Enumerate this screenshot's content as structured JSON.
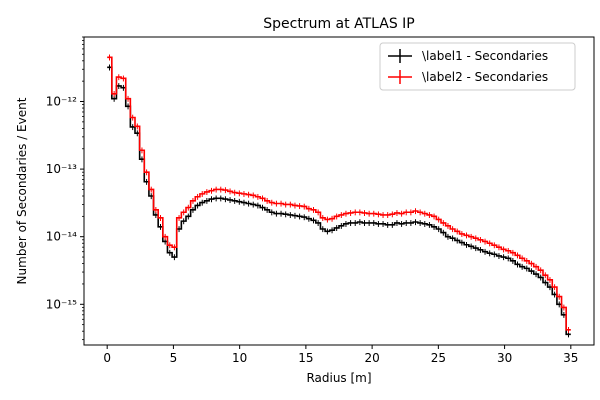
{
  "chart_data": {
    "type": "line",
    "title": "Spectrum at ATLAS IP",
    "xlabel": "Radius [m]",
    "ylabel": "Number of Secondaries / Event",
    "yscale": "log",
    "xlim": [
      -1.75,
      36.75
    ],
    "ylim": [
      2.5e-16,
      9e-12
    ],
    "x_ticks": [
      {
        "value": 0,
        "label": "0"
      },
      {
        "value": 5,
        "label": "5"
      },
      {
        "value": 10,
        "label": "10"
      },
      {
        "value": 15,
        "label": "15"
      },
      {
        "value": 20,
        "label": "20"
      },
      {
        "value": 25,
        "label": "25"
      },
      {
        "value": 30,
        "label": "30"
      },
      {
        "value": 35,
        "label": "35"
      }
    ],
    "y_ticks": [
      {
        "value": 1e-15,
        "label": "10⁻¹⁵"
      },
      {
        "value": 1e-14,
        "label": "10⁻¹⁴"
      },
      {
        "value": 1e-13,
        "label": "10⁻¹³"
      },
      {
        "value": 1e-12,
        "label": "10⁻¹²"
      }
    ],
    "grid": false,
    "legend_position": "top-right",
    "bin_edges": [
      0,
      0.35,
      0.7,
      1.05,
      1.4,
      1.75,
      2.1,
      2.45,
      2.8,
      3.15,
      3.5,
      3.85,
      4.2,
      4.55,
      4.9,
      5.25,
      5.6,
      5.95,
      6.3,
      6.65,
      7.0,
      7.35,
      7.7,
      8.05,
      8.4,
      8.75,
      9.1,
      9.45,
      9.8,
      10.15,
      10.5,
      10.85,
      11.2,
      11.55,
      11.9,
      12.25,
      12.6,
      12.95,
      13.3,
      13.65,
      14.0,
      14.35,
      14.7,
      15.05,
      15.4,
      15.75,
      16.1,
      16.45,
      16.8,
      17.15,
      17.5,
      17.85,
      18.2,
      18.55,
      18.9,
      19.25,
      19.6,
      19.95,
      20.3,
      20.65,
      21.0,
      21.35,
      21.7,
      22.05,
      22.4,
      22.75,
      23.1,
      23.45,
      23.8,
      24.15,
      24.5,
      24.85,
      25.2,
      25.55,
      25.9,
      26.25,
      26.6,
      26.95,
      27.3,
      27.65,
      28.0,
      28.35,
      28.7,
      29.05,
      29.4,
      29.75,
      30.1,
      30.45,
      30.8,
      31.15,
      31.5,
      31.85,
      32.2,
      32.55,
      32.9,
      33.25,
      33.6,
      33.95,
      34.3,
      34.65,
      35.0
    ],
    "series": [
      {
        "name": "\\label1 - Secondaries",
        "color": "#000000",
        "values": [
          3.2e-12,
          1.1e-12,
          1.7e-12,
          1.6e-12,
          8.5e-13,
          4.2e-13,
          3.4e-13,
          1.4e-13,
          6.5e-14,
          4e-14,
          2.1e-14,
          1.4e-14,
          8.5e-15,
          5.8e-15,
          5e-15,
          1.3e-14,
          1.7e-14,
          2e-14,
          2.5e-14,
          2.9e-14,
          3.2e-14,
          3.4e-14,
          3.6e-14,
          3.7e-14,
          3.7e-14,
          3.6e-14,
          3.5e-14,
          3.4e-14,
          3.3e-14,
          3.2e-14,
          3.1e-14,
          3e-14,
          2.9e-14,
          2.7e-14,
          2.5e-14,
          2.3e-14,
          2.2e-14,
          2.2e-14,
          2.15e-14,
          2.1e-14,
          2.05e-14,
          2e-14,
          1.95e-14,
          1.85e-14,
          1.75e-14,
          1.6e-14,
          1.3e-14,
          1.2e-14,
          1.25e-14,
          1.35e-14,
          1.45e-14,
          1.55e-14,
          1.6e-14,
          1.6e-14,
          1.65e-14,
          1.6e-14,
          1.6e-14,
          1.6e-14,
          1.55e-14,
          1.55e-14,
          1.5e-14,
          1.5e-14,
          1.6e-14,
          1.55e-14,
          1.6e-14,
          1.6e-14,
          1.65e-14,
          1.6e-14,
          1.55e-14,
          1.5e-14,
          1.4e-14,
          1.3e-14,
          1.15e-14,
          1e-14,
          9.5e-15,
          8.8e-15,
          8.2e-15,
          7.6e-15,
          7.2e-15,
          6.8e-15,
          6.4e-15,
          6e-15,
          5.7e-15,
          5.5e-15,
          5.2e-15,
          5e-15,
          4.8e-15,
          4.4e-15,
          3.9e-15,
          3.6e-15,
          3.4e-15,
          3.1e-15,
          2.8e-15,
          2.5e-15,
          2.1e-15,
          1.8e-15,
          1.4e-15,
          1e-15,
          7e-16,
          3.6e-16
        ]
      },
      {
        "name": "\\label2 - Secondaries",
        "color": "#ff0000",
        "values": [
          4.5e-12,
          1.3e-12,
          2.3e-12,
          2.2e-12,
          1.1e-12,
          5.8e-13,
          4.3e-13,
          1.9e-13,
          9e-14,
          5e-14,
          2.5e-14,
          1.9e-14,
          1e-14,
          7.5e-15,
          7e-15,
          1.9e-14,
          2.3e-14,
          2.7e-14,
          3.4e-14,
          3.9e-14,
          4.3e-14,
          4.6e-14,
          4.8e-14,
          5e-14,
          5e-14,
          4.9e-14,
          4.7e-14,
          4.5e-14,
          4.4e-14,
          4.3e-14,
          4.2e-14,
          4.1e-14,
          3.9e-14,
          3.7e-14,
          3.4e-14,
          3.2e-14,
          3.1e-14,
          3.1e-14,
          3e-14,
          3e-14,
          2.9e-14,
          2.85e-14,
          2.8e-14,
          2.6e-14,
          2.5e-14,
          2.3e-14,
          1.9e-14,
          1.8e-14,
          1.85e-14,
          2e-14,
          2.1e-14,
          2.2e-14,
          2.25e-14,
          2.3e-14,
          2.3e-14,
          2.25e-14,
          2.2e-14,
          2.2e-14,
          2.15e-14,
          2.1e-14,
          2.1e-14,
          2.15e-14,
          2.25e-14,
          2.2e-14,
          2.3e-14,
          2.3e-14,
          2.4e-14,
          2.3e-14,
          2.2e-14,
          2.1e-14,
          2e-14,
          1.8e-14,
          1.6e-14,
          1.45e-14,
          1.3e-14,
          1.2e-14,
          1.1e-14,
          1.05e-14,
          1e-14,
          9.5e-15,
          9e-15,
          8.5e-15,
          8e-15,
          7.5e-15,
          7e-15,
          6.5e-15,
          6.2e-15,
          5.8e-15,
          5.3e-15,
          4.8e-15,
          4.4e-15,
          4e-15,
          3.6e-15,
          3.2e-15,
          2.7e-15,
          2.3e-15,
          1.8e-15,
          1.3e-15,
          9e-16,
          4.2e-16
        ]
      }
    ]
  }
}
